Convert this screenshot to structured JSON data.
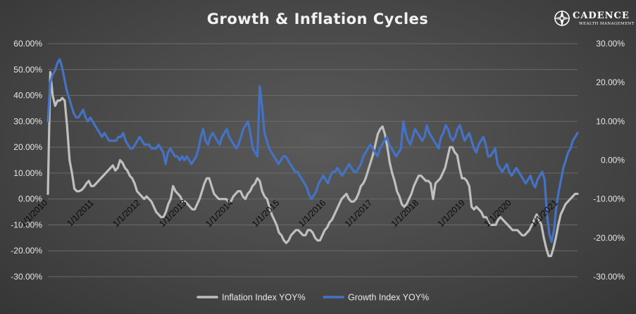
{
  "logo": {
    "name": "CADENCE",
    "tagline": "WEALTH MANAGEMENT"
  },
  "colors": {
    "inflation": "#bfbfbf",
    "growth": "#4472c4"
  },
  "chart_data": {
    "type": "line",
    "title": "Growth & Inflation Cycles",
    "x_labels": [
      "1/1/2010",
      "1/1/2011",
      "1/1/2012",
      "1/1/2013",
      "1/1/2014",
      "1/1/2015",
      "1/1/2016",
      "1/1/2017",
      "1/1/2018",
      "1/1/2019",
      "1/1/2020",
      "1/1/2021"
    ],
    "x_start": "2010-01",
    "x_end": "2021-06",
    "left_axis": {
      "ylim": [
        -30,
        60
      ],
      "ticks": [
        "60.00%",
        "50.00%",
        "40.00%",
        "30.00%",
        "20.00%",
        "10.00%",
        "0.00%",
        "-10.00%",
        "-20.00%",
        "-30.00%"
      ]
    },
    "right_axis": {
      "ylim": [
        -30,
        30
      ],
      "ticks": [
        "30.00%",
        "20.00%",
        "10.00%",
        "0.00%",
        "-10.00%",
        "-20.00%",
        "-30.00%"
      ]
    },
    "grid": true,
    "legend_position": "bottom",
    "series": [
      {
        "name": "Inflation Index YOY%",
        "axis": "left",
        "values": [
          2,
          49,
          40,
          36,
          38,
          38,
          39,
          38,
          28,
          15,
          10,
          4,
          3,
          3,
          3.5,
          4.5,
          6,
          7,
          5,
          5,
          6,
          7,
          8,
          9,
          10,
          11,
          12,
          13,
          11,
          12,
          15,
          14,
          12,
          11,
          9,
          8,
          6,
          3,
          2,
          1,
          0,
          1,
          0,
          -1,
          -3,
          -5,
          -6,
          -7,
          -7,
          -5,
          -2,
          0,
          5,
          3,
          2,
          1,
          -1,
          -1,
          -2,
          -3,
          -4,
          -4,
          -2,
          0,
          3,
          6,
          8,
          8,
          5,
          2,
          1,
          0,
          0,
          0,
          0,
          -1,
          -1,
          1,
          2,
          3,
          3,
          1,
          0,
          2,
          3,
          5,
          6,
          8,
          7,
          3,
          1,
          0,
          -3,
          -6,
          -8,
          -10,
          -13,
          -14,
          -16,
          -17,
          -16,
          -14,
          -13,
          -12,
          -12,
          -13,
          -14,
          -14,
          -12,
          -12,
          -13,
          -15,
          -16,
          -16,
          -14,
          -12,
          -11,
          -9,
          -8,
          -6,
          -4,
          -2,
          0,
          1,
          2,
          0,
          -1,
          -1,
          0,
          2,
          5,
          6,
          8,
          11,
          14,
          17,
          21,
          25,
          27,
          28,
          25,
          20,
          14,
          10,
          7,
          3,
          1,
          -2,
          -3,
          -2,
          0,
          2,
          5,
          7,
          9,
          9,
          8,
          7,
          7,
          6,
          0,
          6,
          7,
          8,
          10,
          12,
          16,
          20,
          20,
          18,
          17,
          12,
          8,
          8,
          7,
          5,
          -3,
          -4,
          -3,
          -4,
          -5,
          -7,
          -7,
          -8,
          -10,
          -10,
          -10,
          -8,
          -7,
          -8,
          -9,
          -10,
          -11,
          -12,
          -12,
          -12,
          -13,
          -14,
          -14,
          -13,
          -12,
          -10,
          -8,
          -6,
          -8,
          -10,
          -15,
          -19,
          -22,
          -22,
          -19,
          -15,
          -10,
          -6,
          -4,
          -2,
          -1,
          0,
          1,
          2,
          2
        ]
      },
      {
        "name": "Growth Index YOY%",
        "axis": "right",
        "values": [
          10,
          20,
          22,
          23,
          25,
          26,
          24,
          21,
          18,
          16,
          14,
          12,
          11,
          11,
          12,
          13,
          11,
          10,
          11,
          10,
          9,
          8,
          7,
          6,
          7,
          6,
          5,
          5,
          5,
          5,
          6,
          6,
          7,
          5,
          4,
          3,
          3,
          4,
          5,
          6,
          5,
          4,
          4,
          4,
          3,
          3,
          3,
          4,
          3,
          2,
          -1,
          2,
          3,
          2,
          1,
          1,
          0,
          1,
          0,
          1,
          0,
          -1,
          0,
          1,
          3,
          6,
          8,
          5,
          4,
          6,
          7,
          6,
          5,
          4,
          6,
          7,
          8,
          6,
          5,
          4,
          3,
          4,
          6,
          8,
          9,
          10,
          7,
          3,
          2,
          1,
          19,
          14,
          7,
          5,
          3,
          2,
          1,
          0,
          -1,
          0,
          1,
          1,
          0,
          -1,
          -2,
          -3,
          -3,
          -4,
          -5,
          -6,
          -7,
          -9,
          -10,
          -9,
          -8,
          -6,
          -5,
          -4,
          -5,
          -6,
          -4,
          -3,
          -3,
          -2,
          -3,
          -4,
          -3,
          -2,
          -1,
          -2,
          -3,
          -3,
          -2,
          -1,
          1,
          2,
          3,
          4,
          3,
          2,
          1,
          3,
          4,
          5,
          6,
          4,
          3,
          2,
          1,
          2,
          3,
          10,
          7,
          5,
          4,
          6,
          8,
          7,
          6,
          5,
          6,
          9,
          7,
          6,
          5,
          4,
          3,
          6,
          7,
          9,
          8,
          6,
          5,
          6,
          8,
          9,
          7,
          5,
          6,
          7,
          5,
          3,
          2,
          4,
          5,
          6,
          4,
          1,
          1,
          2,
          3,
          -1,
          -2,
          -3,
          -2,
          -1,
          -3,
          -4,
          -3,
          -2,
          -3,
          -4,
          -5,
          -6,
          -5,
          -4,
          -6,
          -7,
          -5,
          -4,
          -3,
          -5,
          -14,
          -19,
          -21,
          -18,
          -12,
          -8,
          -5,
          -2,
          0,
          2,
          3,
          5,
          6,
          7
        ]
      }
    ]
  }
}
